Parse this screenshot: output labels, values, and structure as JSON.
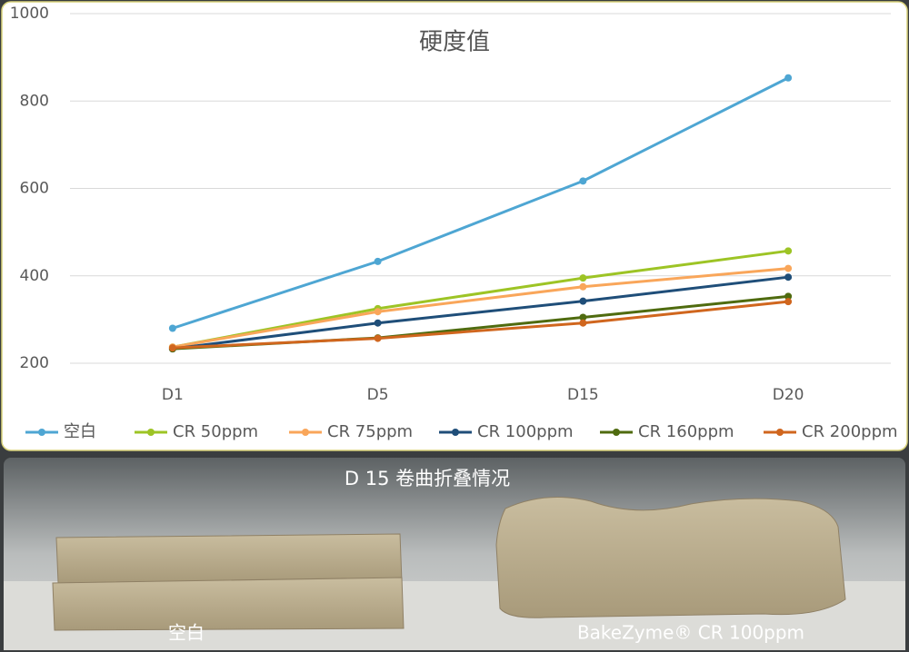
{
  "chart_data": {
    "type": "line",
    "title": "硬度值",
    "categories": [
      "D1",
      "D5",
      "D15",
      "D20"
    ],
    "series": [
      {
        "name": "空白",
        "color": "#4ea6d3",
        "values": [
          280,
          433,
          617,
          853
        ]
      },
      {
        "name": "CR 50ppm",
        "color": "#9dc425",
        "values": [
          237,
          325,
          395,
          457
        ]
      },
      {
        "name": "CR 75ppm",
        "color": "#f9a65a",
        "values": [
          237,
          318,
          375,
          417
        ]
      },
      {
        "name": "CR 100ppm",
        "color": "#1f4e79",
        "values": [
          233,
          292,
          342,
          397
        ]
      },
      {
        "name": "CR 160ppm",
        "color": "#4f6b0f",
        "values": [
          233,
          258,
          305,
          353
        ]
      },
      {
        "name": "CR 200ppm",
        "color": "#d0661e",
        "values": [
          235,
          257,
          292,
          341
        ]
      }
    ],
    "ylim": [
      200,
      1000
    ],
    "yticks": [
      200,
      400,
      600,
      800,
      1000
    ],
    "grid": true,
    "legend": "bottom"
  },
  "photo": {
    "title": "D 15  卷曲折叠情况",
    "labels": [
      "空白",
      "BakeZyme® CR 100ppm"
    ]
  }
}
